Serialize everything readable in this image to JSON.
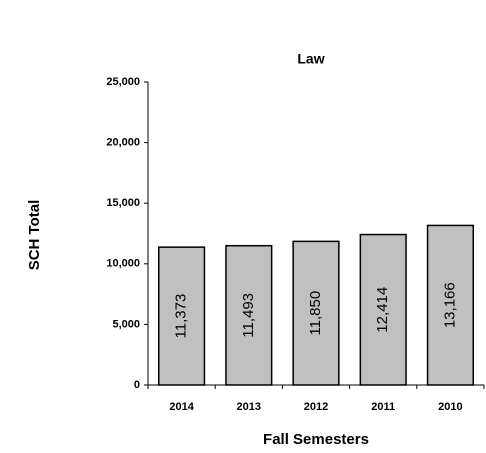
{
  "chart_data": {
    "type": "bar",
    "title": "Law",
    "x_label": "Fall Semesters",
    "y_label": "SCH Total",
    "categories": [
      "2014",
      "2013",
      "2012",
      "2011",
      "2010"
    ],
    "values": [
      11373,
      11493,
      11850,
      12414,
      13166
    ],
    "value_labels": [
      "11,373",
      "11,493",
      "11,850",
      "12,414",
      "13,166"
    ],
    "color": "#c0c0c0",
    "ylim": [
      0,
      25000
    ],
    "yticks": [
      0,
      {
        "value": 5000,
        "label": "5,000"
      },
      {
        "value": 10000,
        "label": "10,000"
      },
      {
        "value": 15000,
        "label": "15,000"
      },
      {
        "value": 20000,
        "label": "20,000"
      },
      {
        "value": 25000,
        "label": "25,000"
      }
    ]
  }
}
